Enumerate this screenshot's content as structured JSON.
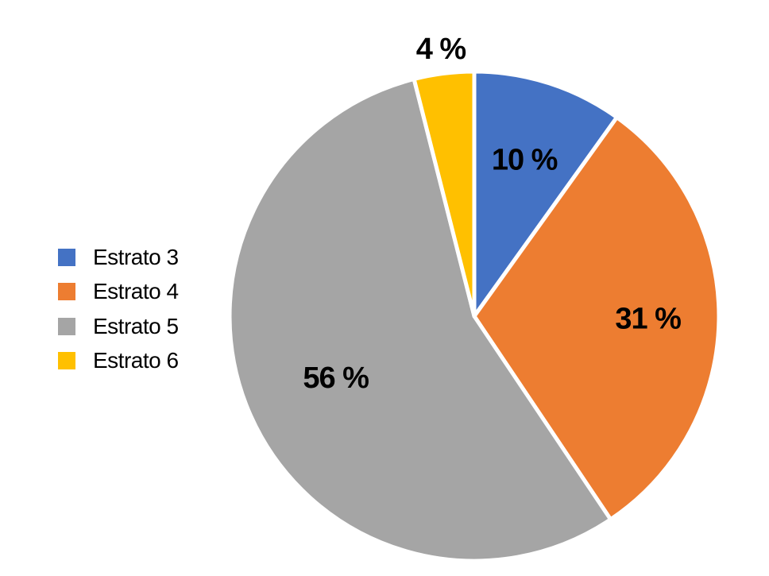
{
  "chart_data": {
    "type": "pie",
    "title": "",
    "legend_position": "left",
    "slices": [
      {
        "name": "Estrato 3",
        "value": 10,
        "label": "10 %",
        "color": "#4472C4"
      },
      {
        "name": "Estrato 4",
        "value": 31,
        "label": "31 %",
        "color": "#ED7D31"
      },
      {
        "name": "Estrato 5",
        "value": 56,
        "label": "56 %",
        "color": "#A5A5A5"
      },
      {
        "name": "Estrato 6",
        "value": 4,
        "label": "4 %",
        "color": "#FFC000"
      }
    ],
    "legend": [
      {
        "name": "Estrato 3",
        "label": "Estrato 3",
        "color": "#4472C4"
      },
      {
        "name": "Estrato 4",
        "label": "Estrato 4",
        "color": "#ED7D31"
      },
      {
        "name": "Estrato 5",
        "label": "Estrato 5",
        "color": "#A5A5A5"
      },
      {
        "name": "Estrato 6",
        "label": "Estrato 6",
        "color": "#FFC000"
      }
    ]
  }
}
